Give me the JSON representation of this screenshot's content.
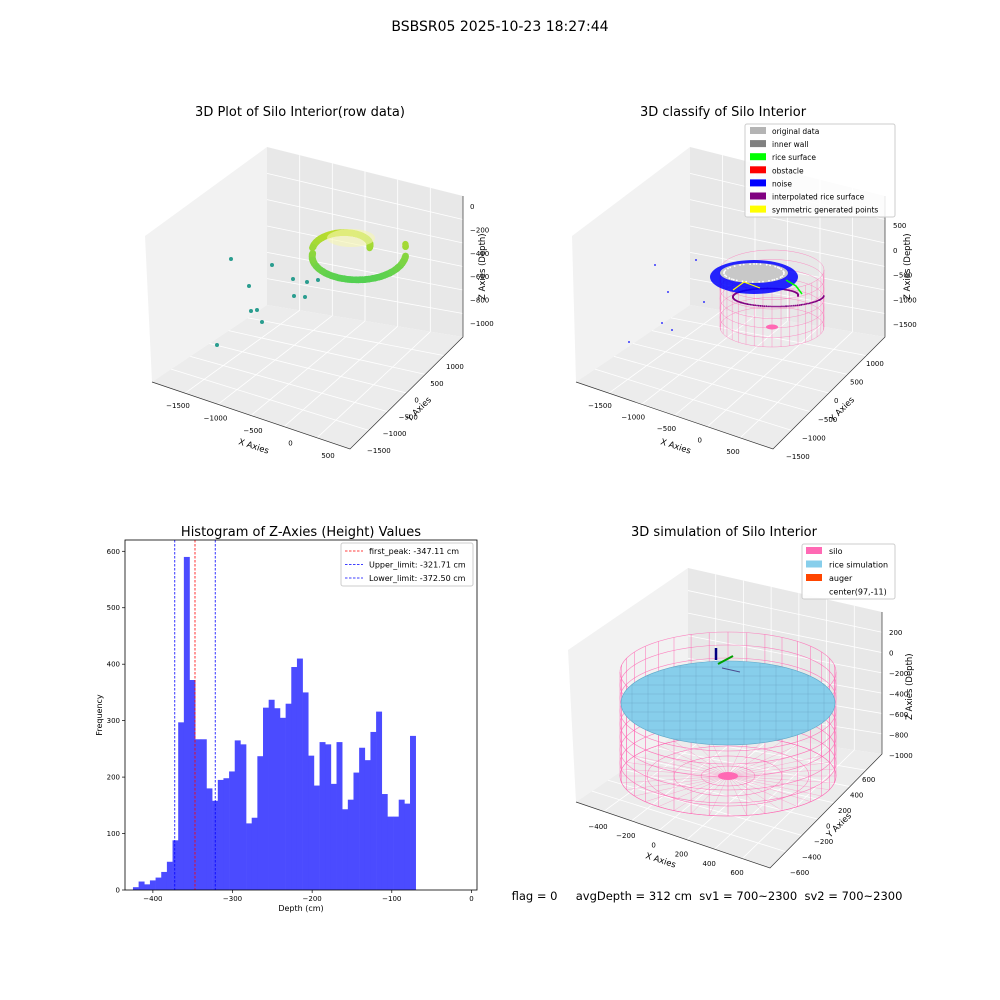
{
  "figure": {
    "suptitle": "BSBSR05 2025-10-23 18:27:44",
    "footer": "flag = 0     avgDepth = 312 cm  sv1 = 700~2300  sv2 = 700~2300"
  },
  "colors": {
    "histogram_bar": "#4b4bff",
    "first_peak_line": "#ff0000",
    "limit_lines": "#0000ff",
    "original": "#b4b4b4",
    "inner_wall": "#808080",
    "rice_surface": "#00ff00",
    "obstacle": "#ff0000",
    "noise": "#0000ff",
    "interp_surface": "#800080",
    "symmetric": "#ffff00",
    "silo": "#ff69b4",
    "rice_sim": "#87ceeb",
    "auger": "#ff4500"
  },
  "panel1": {
    "title": "3D Plot of Silo Interior(row data)",
    "xlabel": "X Axies",
    "ylabel": "Y Axies",
    "zlabel": "Z Axies (Depth)",
    "xticks": [
      "−1500",
      "−1000",
      "−500",
      "0",
      "500"
    ],
    "yticks": [
      "1000",
      "500",
      "0",
      "−500",
      "−1000",
      "−1500"
    ],
    "zticks": [
      "0",
      "−200",
      "−400",
      "−600",
      "−800",
      "−1000"
    ]
  },
  "panel2": {
    "title": "3D classify of Silo Interior",
    "xlabel": "X Axies",
    "ylabel": "Y Axies",
    "zlabel": "Z Axies (Depth)",
    "xticks": [
      "−1500",
      "−1000",
      "−500",
      "0",
      "500"
    ],
    "yticks": [
      "1000",
      "500",
      "0",
      "−500",
      "−1000",
      "−1500"
    ],
    "zticks": [
      "500",
      "0",
      "−500",
      "−1000",
      "−1500"
    ],
    "legend": [
      {
        "label": "original data",
        "color": "#b4b4b4"
      },
      {
        "label": "inner wall",
        "color": "#808080"
      },
      {
        "label": "rice surface",
        "color": "#00ff00"
      },
      {
        "label": "obstacle",
        "color": "#ff0000"
      },
      {
        "label": "noise",
        "color": "#0000ff"
      },
      {
        "label": "interpolated rice surface",
        "color": "#800080"
      },
      {
        "label": "symmetric generated points",
        "color": "#ffff00"
      }
    ]
  },
  "panel4": {
    "title": "3D simulation of Silo Interior",
    "xlabel": "X Axies",
    "ylabel": "Y Axies",
    "zlabel": "Z Axies (Depth)",
    "xticks": [
      "−400",
      "−200",
      "0",
      "200",
      "400",
      "600"
    ],
    "yticks": [
      "600",
      "400",
      "200",
      "0",
      "−200",
      "−400",
      "−600"
    ],
    "zticks": [
      "200",
      "0",
      "−200",
      "−400",
      "−600",
      "−800",
      "−1000"
    ],
    "legend": [
      {
        "label": "silo",
        "color": "#ff69b4"
      },
      {
        "label": "rice simulation",
        "color": "#87ceeb"
      },
      {
        "label": "auger",
        "color": "#ff4500"
      },
      {
        "label": "center(97,-11)",
        "color": ""
      }
    ]
  },
  "chart_data": {
    "type": "bar",
    "title": "Histogram of Z-Axies (Height) Values",
    "xlabel": "Depth (cm)",
    "ylabel": "Frequency",
    "xlim": [
      -435,
      7
    ],
    "ylim": [
      0,
      620
    ],
    "xticks": [
      -400,
      -300,
      -200,
      -100,
      0
    ],
    "yticks": [
      0,
      100,
      200,
      300,
      400,
      500,
      600
    ],
    "bin_start": -425,
    "bin_width": 7.1,
    "values": [
      5,
      15,
      10,
      17,
      22,
      32,
      50,
      88,
      297,
      590,
      372,
      267,
      267,
      180,
      158,
      195,
      198,
      210,
      265,
      258,
      118,
      128,
      237,
      323,
      337,
      322,
      305,
      330,
      395,
      410,
      350,
      238,
      185,
      262,
      258,
      188,
      262,
      143,
      160,
      208,
      252,
      230,
      280,
      316,
      170,
      130,
      130,
      160,
      153,
      273
    ],
    "vlines": [
      {
        "name": "first_peak: -347.11 cm",
        "x": -347.11,
        "color": "#ff0000"
      },
      {
        "name": "Upper_limit: -321.71 cm",
        "x": -321.71,
        "color": "#0000ff"
      },
      {
        "name": "Lower_limit: -372.50 cm",
        "x": -372.5,
        "color": "#0000ff"
      }
    ]
  }
}
